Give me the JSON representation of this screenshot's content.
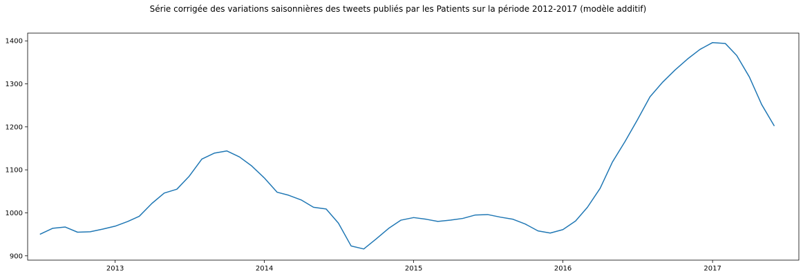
{
  "chart_data": {
    "type": "line",
    "title": "Série corrigée des variations saisonnières des tweets publiés par les Patients sur la période 2012-2017 (modèle additif)",
    "xlabel": "",
    "ylabel": "",
    "grid": false,
    "legend": "none",
    "x_ticks": [
      "2013",
      "2014",
      "2015",
      "2016",
      "2017"
    ],
    "y_ticks": [
      900,
      1000,
      1100,
      1200,
      1300,
      1400
    ],
    "xlim": [
      "2012-06-01",
      "2017-07-31"
    ],
    "ylim": [
      890,
      1418
    ],
    "colors": {
      "series": "#1f77b4",
      "axes": "#000000",
      "background": "#ffffff"
    },
    "x": [
      "2012-07-01",
      "2012-08-01",
      "2012-09-01",
      "2012-10-01",
      "2012-11-01",
      "2012-12-01",
      "2013-01-01",
      "2013-02-01",
      "2013-03-01",
      "2013-04-01",
      "2013-05-01",
      "2013-06-01",
      "2013-07-01",
      "2013-08-01",
      "2013-09-01",
      "2013-10-01",
      "2013-11-01",
      "2013-12-01",
      "2014-01-01",
      "2014-02-01",
      "2014-03-01",
      "2014-04-01",
      "2014-05-01",
      "2014-06-01",
      "2014-07-01",
      "2014-08-01",
      "2014-09-01",
      "2014-10-01",
      "2014-11-01",
      "2014-12-01",
      "2015-01-01",
      "2015-02-01",
      "2015-03-01",
      "2015-04-01",
      "2015-05-01",
      "2015-06-01",
      "2015-07-01",
      "2015-08-01",
      "2015-09-01",
      "2015-10-01",
      "2015-11-01",
      "2015-12-01",
      "2016-01-01",
      "2016-02-01",
      "2016-03-01",
      "2016-04-01",
      "2016-05-01",
      "2016-06-01",
      "2016-07-01",
      "2016-08-01",
      "2016-09-01",
      "2016-10-01",
      "2016-11-01",
      "2016-12-01",
      "2017-01-01",
      "2017-02-01",
      "2017-03-01",
      "2017-04-01",
      "2017-05-01",
      "2017-06-01"
    ],
    "series": [
      {
        "values": [
          950,
          964,
          967,
          955,
          956,
          962,
          969,
          980,
          992,
          1022,
          1046,
          1055,
          1085,
          1125,
          1139,
          1144,
          1130,
          1109,
          1081,
          1048,
          1041,
          1030,
          1013,
          1009,
          976,
          923,
          916,
          939,
          964,
          983,
          989,
          985,
          980,
          983,
          987,
          995,
          996,
          990,
          985,
          974,
          958,
          953,
          961,
          981,
          1013,
          1057,
          1118,
          1166,
          1216,
          1270,
          1304,
          1332,
          1358,
          1380,
          1396,
          1394,
          1366,
          1316,
          1252,
          1202
        ]
      }
    ]
  }
}
